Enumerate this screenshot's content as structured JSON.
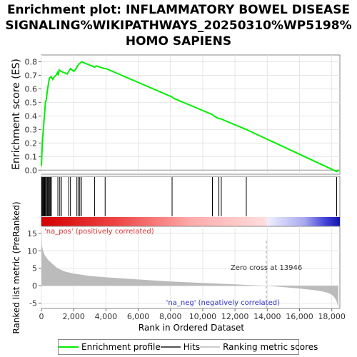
{
  "title_lines": [
    "Enrichment plot: INFLAMMATORY BOWEL DISEASE",
    "SIGNALING%WIKIPATHWAYS_20250310%WP5198%",
    "HOMO SAPIENS"
  ],
  "colors": {
    "es_line": "#00ee00",
    "hits": "#000000",
    "metric_fill": "#bbbbbb",
    "pos_text": "#dd3333",
    "neg_text": "#3333cc",
    "zero_line": "#aaaaaa"
  },
  "chart_data": [
    {
      "type": "line",
      "panel": "enrichment",
      "ylabel": "Enrichment score (ES)",
      "ylim": [
        -0.03,
        0.85
      ],
      "yticks": [
        0.0,
        0.1,
        0.2,
        0.3,
        0.4,
        0.5,
        0.6,
        0.7,
        0.8
      ],
      "xlim": [
        0,
        18500
      ],
      "series": [
        {
          "x": [
            0,
            40,
            80,
            120,
            160,
            200,
            250,
            300,
            350,
            400,
            450,
            500,
            600,
            700,
            800,
            900,
            1000,
            1050,
            1100,
            1200,
            1600,
            1700,
            1800,
            2000,
            2100,
            2200,
            2250,
            2300,
            2400,
            2500,
            3300,
            3400,
            3900,
            4000,
            8100,
            8200,
            10600,
            10700,
            11000,
            11100,
            12700,
            18300,
            18450
          ],
          "y": [
            0.03,
            0.15,
            0.24,
            0.3,
            0.36,
            0.42,
            0.5,
            0.52,
            0.57,
            0.61,
            0.65,
            0.68,
            0.69,
            0.67,
            0.69,
            0.7,
            0.72,
            0.7,
            0.74,
            0.73,
            0.71,
            0.73,
            0.75,
            0.73,
            0.74,
            0.76,
            0.77,
            0.78,
            0.79,
            0.8,
            0.76,
            0.77,
            0.75,
            0.75,
            0.54,
            0.53,
            0.41,
            0.4,
            0.38,
            0.38,
            0.3,
            -0.01,
            0.0
          ]
        }
      ]
    },
    {
      "type": "scatter",
      "panel": "hits",
      "hit_positions": [
        20,
        60,
        100,
        140,
        180,
        220,
        260,
        330,
        380,
        430,
        470,
        520,
        560,
        620,
        1020,
        1140,
        1240,
        1700,
        1800,
        2200,
        2300,
        2380,
        2480,
        3300,
        3950,
        8100,
        10600,
        11000,
        11150,
        12700,
        18300
      ]
    },
    {
      "type": "area",
      "panel": "ranked_metric",
      "ylabel": "Ranked list metric (PreRanked)",
      "xlabel": "Rank in Ordered Dataset",
      "ylim": [
        -6.5,
        17
      ],
      "yticks": [
        -5,
        0,
        5,
        10,
        15
      ],
      "xticks": [
        0,
        2000,
        4000,
        6000,
        8000,
        10000,
        12000,
        14000,
        16000,
        18000
      ],
      "xlim": [
        0,
        18500
      ],
      "x": [
        0,
        30,
        100,
        200,
        400,
        700,
        1000,
        1500,
        2000,
        3000,
        4000,
        6000,
        8000,
        10000,
        12000,
        13946,
        15000,
        16000,
        17000,
        17500,
        17800,
        18000,
        18100,
        18200,
        18300,
        18400
      ],
      "y": [
        16.5,
        11.5,
        10,
        8.8,
        7.5,
        6.2,
        5,
        4,
        3.5,
        2.8,
        2.4,
        1.8,
        1.2,
        0.8,
        0.4,
        0,
        -0.4,
        -0.8,
        -1.3,
        -1.7,
        -2.1,
        -2.6,
        -3.0,
        -3.6,
        -4.5,
        -6.3
      ],
      "zero_cross": 13946,
      "zero_cross_label": "Zero cross at 13946",
      "pos_label": "'na_pos' (positively correlated)",
      "neg_label": "'na_neg' (negatively correlated)"
    }
  ],
  "legend": {
    "items": [
      {
        "label": "Enrichment profile",
        "color": "#00ee00"
      },
      {
        "label": "Hits",
        "color": "#555555"
      },
      {
        "label": "Ranking metric scores",
        "color": "#cccccc"
      }
    ]
  }
}
